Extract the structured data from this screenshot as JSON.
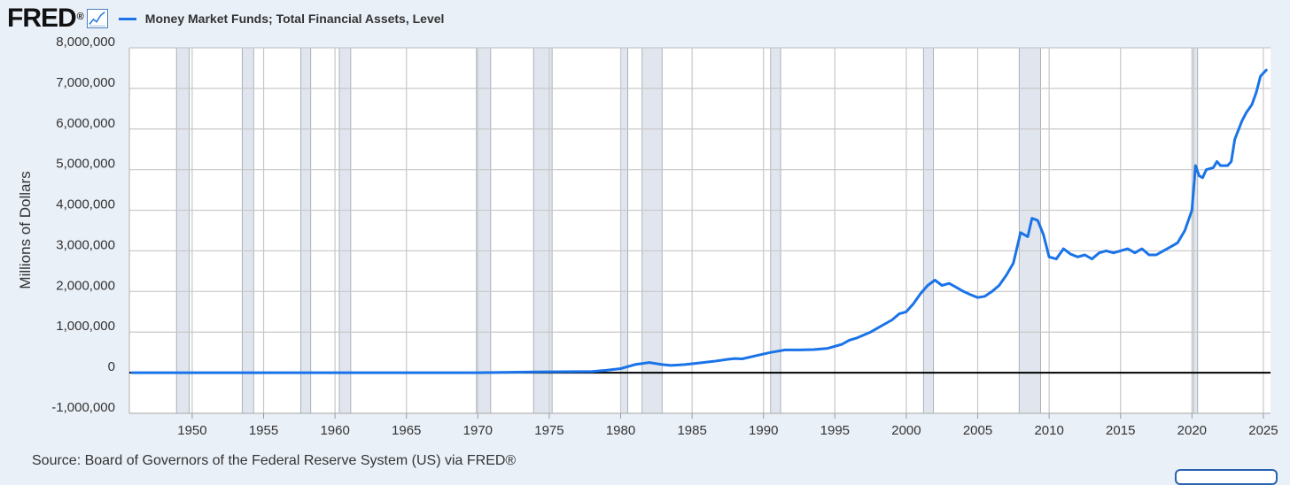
{
  "header": {
    "logo_text": "FRED",
    "logo_mark": "®",
    "logo_icon": "line-chart-icon",
    "legend_label": "Money Market Funds; Total Financial Assets, Level"
  },
  "source": "Source: Board of Governors of the Federal Reserve System (US) via FRED®",
  "colors": {
    "series": "#1a73e8",
    "recession": "#e1e6ee",
    "background": "#eaf0f8",
    "plot": "#ffffff"
  },
  "chart_data": {
    "type": "line",
    "title": "",
    "xlabel": "",
    "ylabel": "Millions of Dollars",
    "xlim": [
      1945.6,
      2025.5
    ],
    "ylim": [
      -1000000,
      8000000
    ],
    "x_ticks": [
      1950,
      1955,
      1960,
      1965,
      1970,
      1975,
      1980,
      1985,
      1990,
      1995,
      2000,
      2005,
      2010,
      2015,
      2020,
      2025
    ],
    "y_ticks": [
      -1000000,
      0,
      1000000,
      2000000,
      3000000,
      4000000,
      5000000,
      6000000,
      7000000,
      8000000
    ],
    "y_tick_labels": [
      "-1,000,000",
      "0",
      "1,000,000",
      "2,000,000",
      "3,000,000",
      "4,000,000",
      "5,000,000",
      "6,000,000",
      "7,000,000",
      "8,000,000"
    ],
    "grid": true,
    "legend_position": "top-left",
    "recessions": [
      [
        1948.9,
        1949.8
      ],
      [
        1953.5,
        1954.3
      ],
      [
        1957.6,
        1958.3
      ],
      [
        1960.3,
        1961.1
      ],
      [
        1969.9,
        1970.9
      ],
      [
        1973.9,
        1975.2
      ],
      [
        1980.0,
        1980.5
      ],
      [
        1981.5,
        1982.9
      ],
      [
        1990.5,
        1991.2
      ],
      [
        2001.2,
        2001.9
      ],
      [
        2007.9,
        2009.4
      ],
      [
        2020.1,
        2020.4
      ]
    ],
    "series": [
      {
        "x": [
          1945.8,
          1946.8,
          1951.9,
          1970.0,
          1974.0,
          1978.0,
          1979.0,
          1980.0,
          1981.0,
          1982.0,
          1982.9,
          1983.5,
          1984.5,
          1985.5,
          1986.5,
          1987.5,
          1988.0,
          1988.5,
          1989.5,
          1990.5,
          1991.0,
          1991.5,
          1992.5,
          1993.5,
          1994.5,
          1995.5,
          1996.0,
          1996.5,
          1997.5,
          1998.5,
          1999.0,
          1999.5,
          2000.0,
          2000.5,
          2001.0,
          2001.5,
          2002.0,
          2002.5,
          2003.0,
          2003.5,
          2004.0,
          2004.5,
          2005.0,
          2005.5,
          2006.0,
          2006.5,
          2007.0,
          2007.5,
          2008.0,
          2008.5,
          2008.8,
          2009.2,
          2009.6,
          2010.0,
          2010.5,
          2011.0,
          2011.5,
          2012.0,
          2012.5,
          2013.0,
          2013.5,
          2014.0,
          2014.5,
          2015.0,
          2015.5,
          2016.0,
          2016.5,
          2017.0,
          2017.5,
          2018.0,
          2018.5,
          2019.0,
          2019.5,
          2020.0,
          2020.25,
          2020.5,
          2020.75,
          2021.0,
          2021.5,
          2021.75,
          2022.0,
          2022.5,
          2022.75,
          2023.0,
          2023.5,
          2023.8,
          2024.2,
          2024.5,
          2024.8,
          2025.2
        ],
        "values": [
          0,
          0,
          0,
          0,
          20000,
          30000,
          60000,
          100000,
          200000,
          250000,
          200000,
          180000,
          200000,
          240000,
          280000,
          330000,
          350000,
          340000,
          420000,
          500000,
          530000,
          560000,
          560000,
          570000,
          600000,
          700000,
          800000,
          850000,
          1000000,
          1200000,
          1300000,
          1450000,
          1500000,
          1700000,
          1950000,
          2150000,
          2280000,
          2150000,
          2200000,
          2100000,
          2000000,
          1920000,
          1850000,
          1880000,
          2000000,
          2150000,
          2400000,
          2700000,
          3450000,
          3350000,
          3800000,
          3750000,
          3400000,
          2850000,
          2800000,
          3050000,
          2920000,
          2850000,
          2900000,
          2800000,
          2950000,
          3000000,
          2950000,
          3000000,
          3050000,
          2950000,
          3050000,
          2900000,
          2900000,
          3000000,
          3100000,
          3200000,
          3500000,
          4000000,
          5100000,
          4850000,
          4800000,
          5000000,
          5050000,
          5200000,
          5100000,
          5100000,
          5200000,
          5750000,
          6200000,
          6400000,
          6600000,
          6900000,
          7300000,
          7450000
        ]
      }
    ]
  }
}
